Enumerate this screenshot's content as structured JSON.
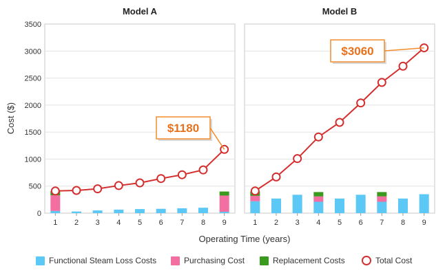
{
  "chart_data": [
    {
      "type": "bar+line",
      "title": "Model A",
      "categories": [
        1,
        2,
        3,
        4,
        5,
        6,
        7,
        8,
        9
      ],
      "series": [
        {
          "name": "Functional Steam Loss Costs",
          "type": "stacked-bar",
          "values": [
            40,
            30,
            50,
            65,
            75,
            80,
            90,
            100,
            25
          ]
        },
        {
          "name": "Purchasing Cost",
          "type": "stacked-bar",
          "values": [
            290,
            0,
            0,
            0,
            0,
            0,
            0,
            0,
            300
          ]
        },
        {
          "name": "Replacement Costs",
          "type": "stacked-bar",
          "values": [
            80,
            0,
            0,
            0,
            0,
            0,
            0,
            0,
            75
          ]
        },
        {
          "name": "Total Cost",
          "type": "line",
          "values": [
            410,
            420,
            450,
            510,
            560,
            640,
            710,
            800,
            1180
          ]
        }
      ],
      "callout": {
        "text": "$1180",
        "category": 9
      },
      "ylim": [
        0,
        3500
      ],
      "yticks": [
        0,
        500,
        1000,
        1500,
        2000,
        2500,
        3000,
        3500
      ]
    },
    {
      "type": "bar+line",
      "title": "Model B",
      "categories": [
        1,
        2,
        3,
        4,
        5,
        6,
        7,
        8,
        9
      ],
      "series": [
        {
          "name": "Functional Steam Loss Costs",
          "type": "stacked-bar",
          "values": [
            220,
            270,
            340,
            210,
            270,
            340,
            210,
            270,
            350
          ]
        },
        {
          "name": "Purchasing Cost",
          "type": "stacked-bar",
          "values": [
            100,
            0,
            0,
            100,
            0,
            0,
            100,
            0,
            0
          ]
        },
        {
          "name": "Replacement Costs",
          "type": "stacked-bar",
          "values": [
            80,
            0,
            0,
            80,
            0,
            0,
            80,
            0,
            0
          ]
        },
        {
          "name": "Total Cost",
          "type": "line",
          "values": [
            410,
            670,
            1010,
            1410,
            1680,
            2040,
            2420,
            2720,
            3060
          ]
        }
      ],
      "callout": {
        "text": "$3060",
        "category": 9
      },
      "ylim": [
        0,
        3500
      ]
    }
  ],
  "axes": {
    "ylabel": "Cost ($)",
    "xlabel": "Operating Time (years)"
  },
  "legend": [
    {
      "label": "Functional Steam Loss Costs",
      "color": "#5bc8f5",
      "kind": "bar"
    },
    {
      "label": "Purchasing Cost",
      "color": "#f36ea1",
      "kind": "bar"
    },
    {
      "label": "Replacement Costs",
      "color": "#3a9a1e",
      "kind": "bar"
    },
    {
      "label": "Total Cost",
      "color": "#d32f2f",
      "kind": "marker"
    }
  ],
  "colors": {
    "line": "#d32f2f",
    "callout_border": "#f28c28",
    "callout_text": "#e8711c"
  }
}
